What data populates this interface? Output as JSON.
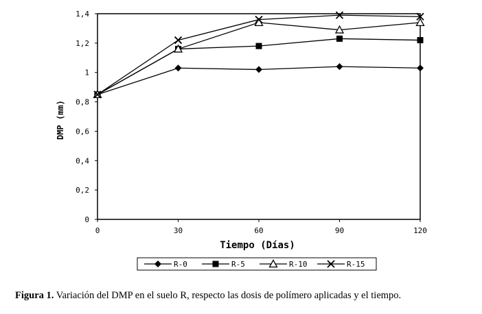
{
  "chart_data": {
    "type": "line",
    "xlabel": "Tiempo (Días)",
    "ylabel": "DMP (mm)",
    "x": [
      0,
      30,
      60,
      90,
      120
    ],
    "xticks": [
      "0",
      "30",
      "60",
      "90",
      "120"
    ],
    "yticks": [
      "0",
      "0,2",
      "0,4",
      "0,6",
      "0,8",
      "1",
      "1,2",
      "1,4"
    ],
    "ylim": [
      0,
      1.4
    ],
    "xlim": [
      0,
      120
    ],
    "grid": false,
    "legend_position": "bottom",
    "series": [
      {
        "name": "R-0",
        "marker": "diamond",
        "values": [
          0.85,
          1.03,
          1.02,
          1.04,
          1.03
        ]
      },
      {
        "name": "R-5",
        "marker": "square",
        "values": [
          0.85,
          1.16,
          1.18,
          1.23,
          1.22
        ]
      },
      {
        "name": "R-10",
        "marker": "triangle",
        "values": [
          0.85,
          1.16,
          1.34,
          1.29,
          1.34
        ]
      },
      {
        "name": "R-15",
        "marker": "x",
        "values": [
          0.85,
          1.22,
          1.36,
          1.39,
          1.38
        ]
      }
    ]
  },
  "caption": {
    "label": "Figura 1.",
    "text": " Variación del DMP en el suelo R, respecto las dosis de polímero aplicadas y el tiempo."
  }
}
